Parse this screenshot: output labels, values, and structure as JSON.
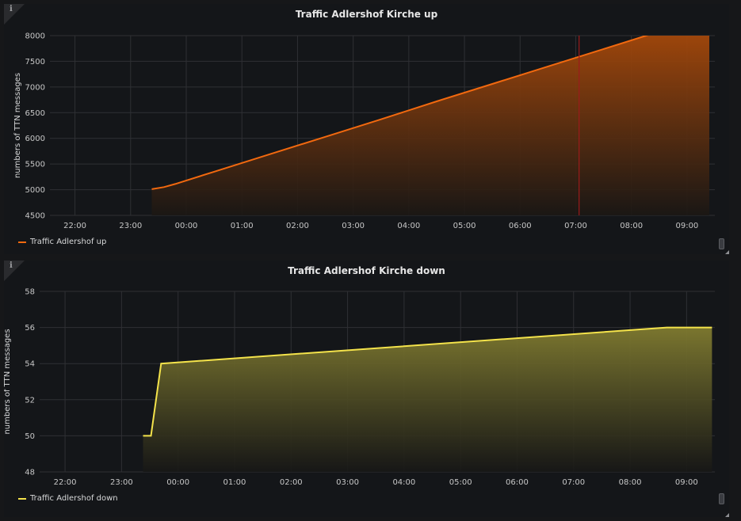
{
  "panels": [
    {
      "id": "up",
      "info_icon": "info-icon",
      "title": "Traffic Adlershof Kirche up",
      "legend_label": "Traffic Adlershof up",
      "color": "#f2690f",
      "fill_top": "#b24d0a",
      "fill_bottom": "#1b1714"
    },
    {
      "id": "down",
      "info_icon": "info-icon",
      "title": "Traffic Adlershof Kirche down",
      "legend_label": "Traffic Adlershof down",
      "color": "#f4e34b",
      "fill_top": "#807b30",
      "fill_bottom": "#171716"
    }
  ],
  "chart_data": [
    {
      "type": "area",
      "title": "Traffic Adlershof Kirche up",
      "xlabel": "",
      "ylabel": "numbers of TTN messages",
      "x_ticks": [
        "22:00",
        "23:00",
        "00:00",
        "01:00",
        "02:00",
        "03:00",
        "04:00",
        "05:00",
        "06:00",
        "07:00",
        "08:00",
        "09:00"
      ],
      "y_ticks": [
        4500,
        5000,
        5500,
        6000,
        6500,
        7000,
        7500,
        8000
      ],
      "ylim": [
        4500,
        8000
      ],
      "xlim_hours": [
        -2.45,
        9.5
      ],
      "grid": true,
      "legend": "bottom-left",
      "annotation_hour": 7.06,
      "series": [
        {
          "name": "Traffic Adlershof up",
          "x": [
            -0.62,
            -0.4,
            -0.2,
            0.5,
            1.5,
            2.5,
            3.5,
            4.5,
            5.5,
            6.5,
            7.5,
            8.5,
            9.4
          ],
          "y": [
            5010,
            5050,
            5110,
            5350,
            5690,
            6030,
            6370,
            6720,
            7060,
            7400,
            7740,
            8080,
            8350
          ]
        }
      ]
    },
    {
      "type": "area",
      "title": "Traffic Adlershof Kirche down",
      "xlabel": "",
      "ylabel": "numbers of TTN messages",
      "x_ticks": [
        "22:00",
        "23:00",
        "00:00",
        "01:00",
        "02:00",
        "03:00",
        "04:00",
        "05:00",
        "06:00",
        "07:00",
        "08:00",
        "09:00"
      ],
      "y_ticks": [
        48,
        50,
        52,
        54,
        56,
        58
      ],
      "ylim": [
        48,
        58
      ],
      "xlim_hours": [
        -2.45,
        9.5
      ],
      "grid": true,
      "legend": "bottom-left",
      "series": [
        {
          "name": "Traffic Adlershof down",
          "x": [
            -0.62,
            -0.48,
            -0.3,
            8.65,
            9.45
          ],
          "y": [
            50,
            50,
            54,
            56,
            56
          ]
        }
      ]
    }
  ]
}
